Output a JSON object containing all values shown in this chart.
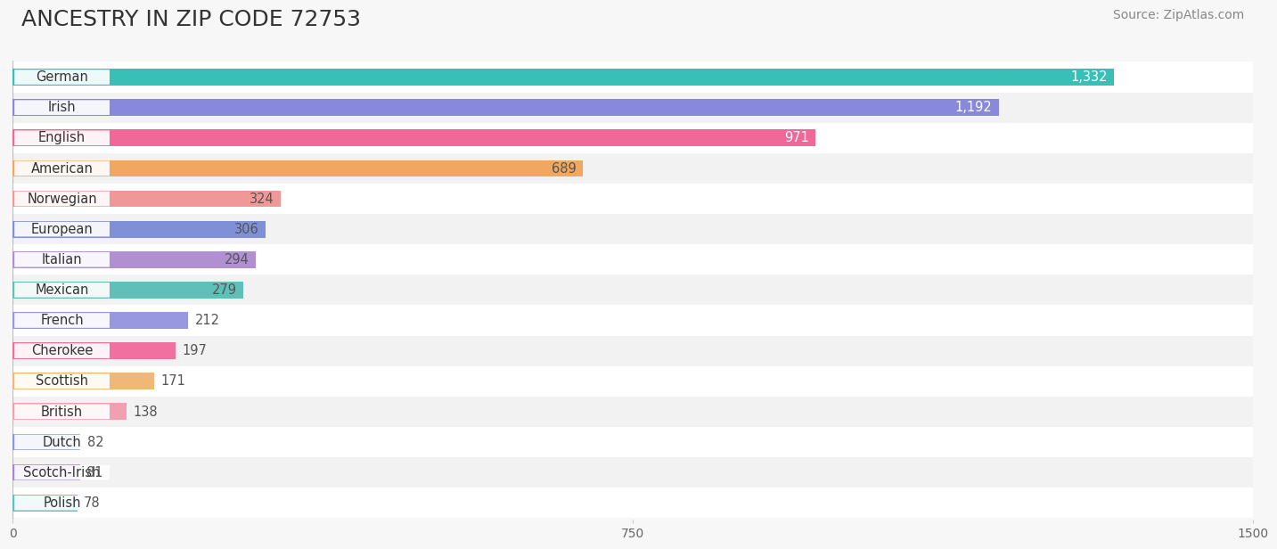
{
  "title": "ANCESTRY IN ZIP CODE 72753",
  "source": "Source: ZipAtlas.com",
  "categories": [
    "German",
    "Irish",
    "English",
    "American",
    "Norwegian",
    "European",
    "Italian",
    "Mexican",
    "French",
    "Cherokee",
    "Scottish",
    "British",
    "Dutch",
    "Scotch-Irish",
    "Polish"
  ],
  "values": [
    1332,
    1192,
    971,
    689,
    324,
    306,
    294,
    279,
    212,
    197,
    171,
    138,
    82,
    81,
    78
  ],
  "bar_colors": [
    "#38c0b8",
    "#8888dd",
    "#f06898",
    "#f0a860",
    "#f09898",
    "#8090d8",
    "#b090d0",
    "#60c0b8",
    "#9898e0",
    "#f070a0",
    "#f0b878",
    "#f0a0b0",
    "#8898d8",
    "#a888cc",
    "#60c0c8"
  ],
  "value_label_colors": [
    "#ffffff",
    "#ffffff",
    "#ffffff",
    "#555555",
    "#555555",
    "#555555",
    "#555555",
    "#555555",
    "#555555",
    "#555555",
    "#555555",
    "#555555",
    "#555555",
    "#555555",
    "#555555"
  ],
  "xlim": [
    0,
    1500
  ],
  "xticks": [
    0,
    750,
    1500
  ],
  "background_color": "#f7f7f7",
  "row_colors": [
    "#ffffff",
    "#f2f2f2"
  ],
  "title_fontsize": 18,
  "source_fontsize": 10,
  "bar_height": 0.55,
  "label_fontsize": 10.5,
  "value_threshold": 250
}
